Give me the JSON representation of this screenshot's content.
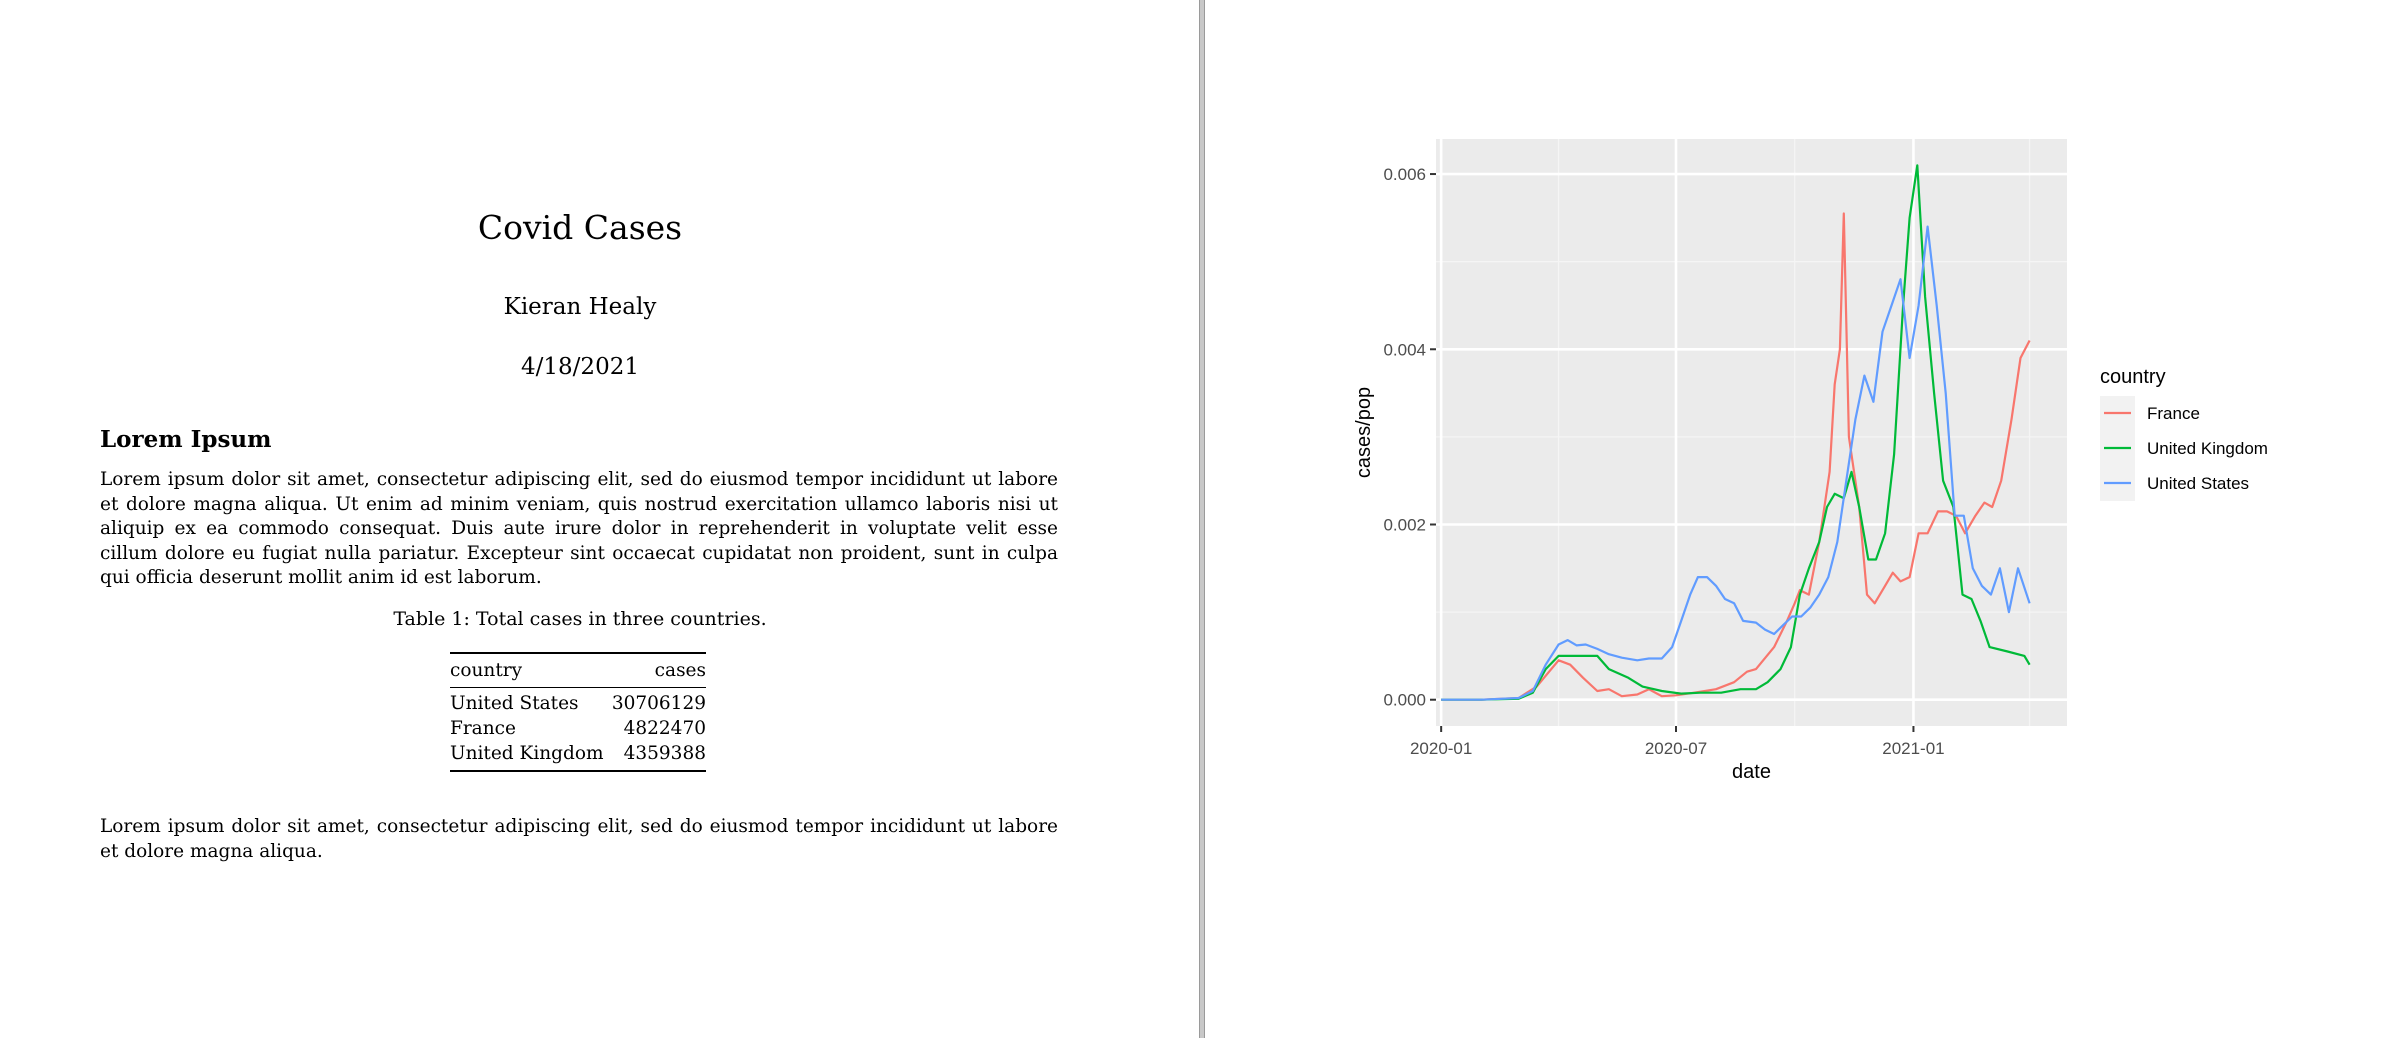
{
  "document": {
    "title": "Covid Cases",
    "author": "Kieran Healy",
    "date": "4/18/2021",
    "section_heading": "Lorem Ipsum",
    "paragraph1": "Lorem ipsum dolor sit amet, consectetur adipiscing elit, sed do eiusmod tempor incididunt ut labore et dolore magna aliqua. Ut enim ad minim veniam, quis nostrud exercitation ullamco laboris nisi ut aliquip ex ea commodo consequat. Duis aute irure dolor in reprehenderit in voluptate velit esse cillum dolore eu fugiat nulla pariatur. Excepteur sint occaecat cupidatat non proident, sunt in culpa qui officia deserunt mollit anim id est laborum.",
    "table_caption": "Table 1: Total cases in three countries.",
    "table": {
      "headers": [
        "country",
        "cases"
      ],
      "rows": [
        [
          "United States",
          "30706129"
        ],
        [
          "France",
          "4822470"
        ],
        [
          "United Kingdom",
          "4359388"
        ]
      ]
    },
    "paragraph2": "Lorem ipsum dolor sit amet, consectetur adipiscing elit, sed do eiusmod tempor incididunt ut labore et dolore magna aliqua."
  },
  "chart_data": {
    "type": "line",
    "title": "",
    "xlabel": "date",
    "ylabel": "cases/pop",
    "xlim": [
      "2019-12-28",
      "2021-04-30"
    ],
    "ylim": [
      -0.0003,
      0.0064
    ],
    "x_ticks": [
      "2020-01",
      "2020-07",
      "2021-01"
    ],
    "y_ticks": [
      "0.000",
      "0.002",
      "0.004",
      "0.006"
    ],
    "grid": true,
    "legend": {
      "title": "country",
      "position": "right"
    },
    "series": [
      {
        "name": "France",
        "color": "#F8766D",
        "points": [
          [
            "2020-01-01",
            0
          ],
          [
            "2020-02-01",
            0
          ],
          [
            "2020-03-01",
            2e-05
          ],
          [
            "2020-03-15",
            0.00015
          ],
          [
            "2020-04-01",
            0.00045
          ],
          [
            "2020-04-10",
            0.0004
          ],
          [
            "2020-04-20",
            0.00025
          ],
          [
            "2020-05-01",
            0.0001
          ],
          [
            "2020-05-10",
            0.00012
          ],
          [
            "2020-05-20",
            4e-05
          ],
          [
            "2020-06-01",
            6e-05
          ],
          [
            "2020-06-10",
            0.00012
          ],
          [
            "2020-06-20",
            4e-05
          ],
          [
            "2020-07-01",
            5e-05
          ],
          [
            "2020-07-15",
            8e-05
          ],
          [
            "2020-08-01",
            0.00012
          ],
          [
            "2020-08-15",
            0.0002
          ],
          [
            "2020-08-25",
            0.00032
          ],
          [
            "2020-09-01",
            0.00035
          ],
          [
            "2020-09-15",
            0.0006
          ],
          [
            "2020-09-25",
            0.0009
          ],
          [
            "2020-10-01",
            0.0011
          ],
          [
            "2020-10-05",
            0.00125
          ],
          [
            "2020-10-12",
            0.0012
          ],
          [
            "2020-10-20",
            0.0018
          ],
          [
            "2020-10-28",
            0.0026
          ],
          [
            "2020-11-01",
            0.0036
          ],
          [
            "2020-11-05",
            0.004
          ],
          [
            "2020-11-08",
            0.00555
          ],
          [
            "2020-11-12",
            0.003
          ],
          [
            "2020-11-20",
            0.0022
          ],
          [
            "2020-11-26",
            0.0012
          ],
          [
            "2020-12-02",
            0.0011
          ],
          [
            "2020-12-10",
            0.0013
          ],
          [
            "2020-12-16",
            0.00145
          ],
          [
            "2020-12-22",
            0.00135
          ],
          [
            "2020-12-29",
            0.0014
          ],
          [
            "2021-01-05",
            0.0019
          ],
          [
            "2021-01-12",
            0.0019
          ],
          [
            "2021-01-20",
            0.00215
          ],
          [
            "2021-01-27",
            0.00215
          ],
          [
            "2021-02-03",
            0.0021
          ],
          [
            "2021-02-10",
            0.0019
          ],
          [
            "2021-02-18",
            0.0021
          ],
          [
            "2021-02-25",
            0.00225
          ],
          [
            "2021-03-03",
            0.0022
          ],
          [
            "2021-03-10",
            0.0025
          ],
          [
            "2021-03-18",
            0.0032
          ],
          [
            "2021-03-25",
            0.0039
          ],
          [
            "2021-04-01",
            0.0041
          ]
        ]
      },
      {
        "name": "United Kingdom",
        "color": "#00BA38",
        "points": [
          [
            "2020-01-01",
            0
          ],
          [
            "2020-02-01",
            0
          ],
          [
            "2020-03-01",
            1e-05
          ],
          [
            "2020-03-12",
            8e-05
          ],
          [
            "2020-03-22",
            0.00035
          ],
          [
            "2020-04-01",
            0.0005
          ],
          [
            "2020-04-15",
            0.0005
          ],
          [
            "2020-05-01",
            0.0005
          ],
          [
            "2020-05-10",
            0.00035
          ],
          [
            "2020-05-25",
            0.00025
          ],
          [
            "2020-06-05",
            0.00015
          ],
          [
            "2020-06-20",
            0.0001
          ],
          [
            "2020-07-05",
            7e-05
          ],
          [
            "2020-07-20",
            8e-05
          ],
          [
            "2020-08-05",
            8e-05
          ],
          [
            "2020-08-20",
            0.00012
          ],
          [
            "2020-09-01",
            0.00012
          ],
          [
            "2020-09-10",
            0.0002
          ],
          [
            "2020-09-20",
            0.00035
          ],
          [
            "2020-09-28",
            0.0006
          ],
          [
            "2020-10-05",
            0.0012
          ],
          [
            "2020-10-12",
            0.0015
          ],
          [
            "2020-10-20",
            0.0018
          ],
          [
            "2020-10-26",
            0.0022
          ],
          [
            "2020-11-01",
            0.00235
          ],
          [
            "2020-11-08",
            0.0023
          ],
          [
            "2020-11-14",
            0.0026
          ],
          [
            "2020-11-20",
            0.0022
          ],
          [
            "2020-11-27",
            0.0016
          ],
          [
            "2020-12-03",
            0.0016
          ],
          [
            "2020-12-10",
            0.0019
          ],
          [
            "2020-12-17",
            0.0028
          ],
          [
            "2020-12-24",
            0.0045
          ],
          [
            "2020-12-29",
            0.0055
          ],
          [
            "2021-01-04",
            0.0061
          ],
          [
            "2021-01-10",
            0.0046
          ],
          [
            "2021-01-17",
            0.0035
          ],
          [
            "2021-01-24",
            0.0025
          ],
          [
            "2021-02-01",
            0.0022
          ],
          [
            "2021-02-08",
            0.0012
          ],
          [
            "2021-02-15",
            0.00115
          ],
          [
            "2021-02-22",
            0.0009
          ],
          [
            "2021-03-01",
            0.0006
          ],
          [
            "2021-03-15",
            0.00055
          ],
          [
            "2021-03-28",
            0.0005
          ],
          [
            "2021-04-01",
            0.0004
          ]
        ]
      },
      {
        "name": "United States",
        "color": "#619CFF",
        "points": [
          [
            "2020-01-01",
            0
          ],
          [
            "2020-02-01",
            0
          ],
          [
            "2020-03-01",
            2e-05
          ],
          [
            "2020-03-12",
            0.0001
          ],
          [
            "2020-03-22",
            0.0004
          ],
          [
            "2020-04-01",
            0.00063
          ],
          [
            "2020-04-08",
            0.00068
          ],
          [
            "2020-04-15",
            0.00062
          ],
          [
            "2020-04-22",
            0.00063
          ],
          [
            "2020-05-01",
            0.00058
          ],
          [
            "2020-05-10",
            0.00052
          ],
          [
            "2020-05-20",
            0.00048
          ],
          [
            "2020-06-01",
            0.00045
          ],
          [
            "2020-06-10",
            0.00047
          ],
          [
            "2020-06-20",
            0.00047
          ],
          [
            "2020-06-28",
            0.0006
          ],
          [
            "2020-07-05",
            0.0009
          ],
          [
            "2020-07-12",
            0.0012
          ],
          [
            "2020-07-18",
            0.0014
          ],
          [
            "2020-07-25",
            0.0014
          ],
          [
            "2020-08-01",
            0.0013
          ],
          [
            "2020-08-08",
            0.00115
          ],
          [
            "2020-08-15",
            0.0011
          ],
          [
            "2020-08-22",
            0.0009
          ],
          [
            "2020-09-01",
            0.00088
          ],
          [
            "2020-09-08",
            0.0008
          ],
          [
            "2020-09-15",
            0.00075
          ],
          [
            "2020-09-22",
            0.00085
          ],
          [
            "2020-09-29",
            0.00095
          ],
          [
            "2020-10-06",
            0.00095
          ],
          [
            "2020-10-13",
            0.00105
          ],
          [
            "2020-10-20",
            0.0012
          ],
          [
            "2020-10-27",
            0.0014
          ],
          [
            "2020-11-03",
            0.0018
          ],
          [
            "2020-11-10",
            0.0025
          ],
          [
            "2020-11-17",
            0.0032
          ],
          [
            "2020-11-24",
            0.0037
          ],
          [
            "2020-12-01",
            0.0034
          ],
          [
            "2020-12-08",
            0.0042
          ],
          [
            "2020-12-15",
            0.0045
          ],
          [
            "2020-12-22",
            0.0048
          ],
          [
            "2020-12-29",
            0.0039
          ],
          [
            "2021-01-05",
            0.0045
          ],
          [
            "2021-01-12",
            0.0054
          ],
          [
            "2021-01-19",
            0.0045
          ],
          [
            "2021-01-26",
            0.0035
          ],
          [
            "2021-02-02",
            0.0021
          ],
          [
            "2021-02-09",
            0.0021
          ],
          [
            "2021-02-16",
            0.0015
          ],
          [
            "2021-02-23",
            0.0013
          ],
          [
            "2021-03-02",
            0.0012
          ],
          [
            "2021-03-09",
            0.0015
          ],
          [
            "2021-03-16",
            0.001
          ],
          [
            "2021-03-23",
            0.0015
          ],
          [
            "2021-04-01",
            0.0011
          ]
        ]
      }
    ]
  }
}
